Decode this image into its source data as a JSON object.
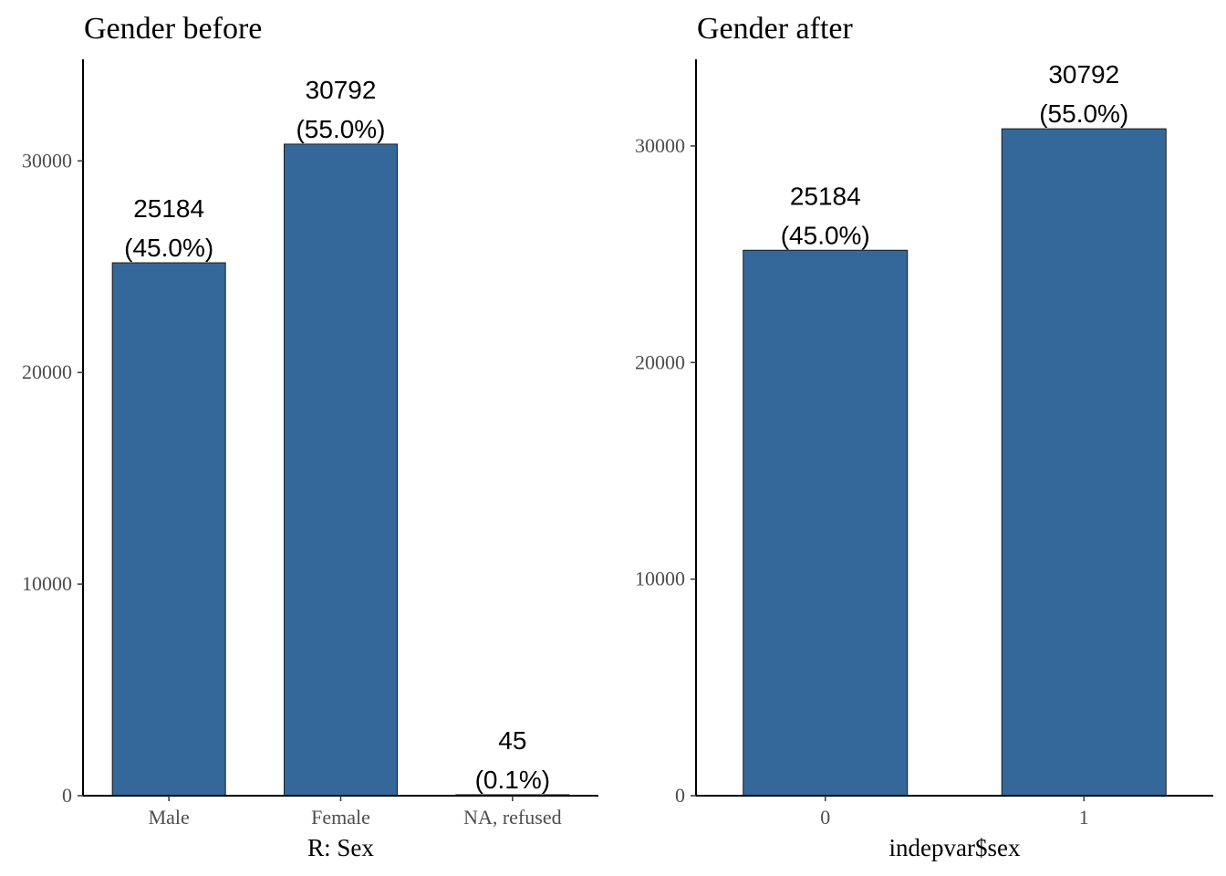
{
  "chart_data": [
    {
      "type": "bar",
      "title": "Gender before",
      "xlabel": "R: Sex",
      "ylabel": "",
      "categories": [
        "Male",
        "Female",
        "NA, refused"
      ],
      "values": [
        25184,
        30792,
        45
      ],
      "value_labels": [
        "25184",
        "30792",
        "45"
      ],
      "percent_labels": [
        "(45.0%)",
        "(55.0%)",
        "(0.1%)"
      ],
      "ylim": [
        0,
        34800
      ],
      "yticks": [
        0,
        10000,
        20000,
        30000
      ],
      "ytick_labels": [
        "0",
        "10000",
        "20000",
        "30000"
      ],
      "bar_color": "#35689A",
      "grid": false
    },
    {
      "type": "bar",
      "title": "Gender after",
      "xlabel": "indepvar$sex",
      "ylabel": "",
      "categories": [
        "0",
        "1"
      ],
      "values": [
        25184,
        30792
      ],
      "value_labels": [
        "25184",
        "30792"
      ],
      "percent_labels": [
        "(45.0%)",
        "(55.0%)"
      ],
      "ylim": [
        0,
        34000
      ],
      "yticks": [
        0,
        10000,
        20000,
        30000
      ],
      "ytick_labels": [
        "0",
        "10000",
        "20000",
        "30000"
      ],
      "bar_color": "#35689A",
      "grid": false
    }
  ]
}
